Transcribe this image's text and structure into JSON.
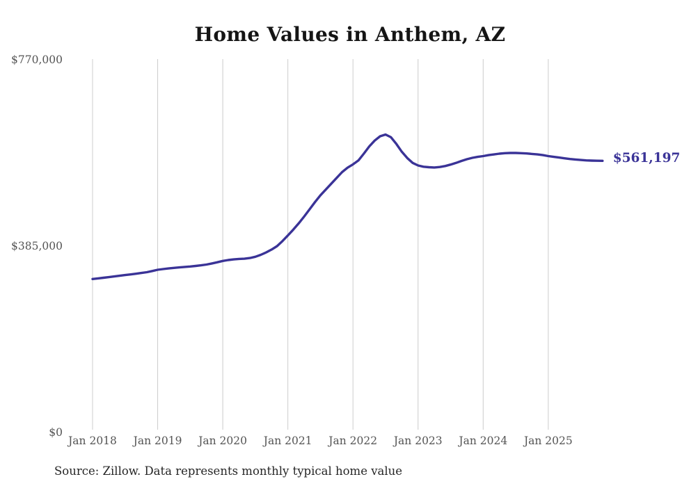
{
  "page": {
    "background_color": "#ffffff"
  },
  "chart": {
    "title": "Home Values in Anthem, AZ",
    "end_label": "$561,197",
    "source_note": "Source: Zillow. Data represents monthly typical home value",
    "accent_color": "#3a3397",
    "gridline_color": "#cccccc",
    "axis_label_color": "#545454",
    "title_color": "#151515",
    "source_color": "#262626"
  },
  "chart_data": {
    "type": "line",
    "title": "Home Values in Anthem, AZ",
    "xlabel": "",
    "ylabel": "",
    "unit": "USD",
    "frequency": "monthly",
    "x_start_month": "2018-01",
    "x_end_month": "2025-11",
    "x_tick_labels": [
      "Jan 2018",
      "Jan 2019",
      "Jan 2020",
      "Jan 2021",
      "Jan 2022",
      "Jan 2023",
      "Jan 2024",
      "Jan 2025"
    ],
    "y_ticks": [
      770000,
      385000,
      0
    ],
    "y_tick_labels": [
      "$770,000",
      "$385,000",
      "$0"
    ],
    "ylim": [
      0,
      770000
    ],
    "grid": "vertical-only",
    "legend": "none",
    "annotations": [
      {
        "text": "$561,197",
        "position": "end-of-line"
      }
    ],
    "series": [
      {
        "name": "Typical home value",
        "final_value": 561197,
        "final_label": "$561,197",
        "values": [
          317000,
          318300,
          319700,
          321000,
          322400,
          323800,
          325200,
          326600,
          328000,
          329500,
          331200,
          333500,
          336200,
          337600,
          338900,
          340100,
          341100,
          342000,
          342900,
          344000,
          345300,
          347000,
          349200,
          351700,
          354400,
          356200,
          357600,
          358500,
          359000,
          360500,
          363000,
          367000,
          372000,
          378000,
          385000,
          395500,
          407000,
          419000,
          432000,
          446000,
          461000,
          476000,
          490000,
          502000,
          514000,
          526000,
          538000,
          547000,
          554000,
          562000,
          576000,
          591000,
          603000,
          612000,
          615500,
          610000,
          596000,
          580000,
          567000,
          557000,
          551600,
          549000,
          548000,
          547500,
          548500,
          550500,
          553500,
          557000,
          561000,
          564500,
          567500,
          569500,
          571000,
          573000,
          574500,
          576000,
          577000,
          577500,
          577500,
          577000,
          576500,
          575500,
          574500,
          573000,
          571000,
          569500,
          568000,
          566500,
          565000,
          564000,
          563000,
          562200,
          561700,
          561400,
          561197
        ]
      }
    ]
  }
}
